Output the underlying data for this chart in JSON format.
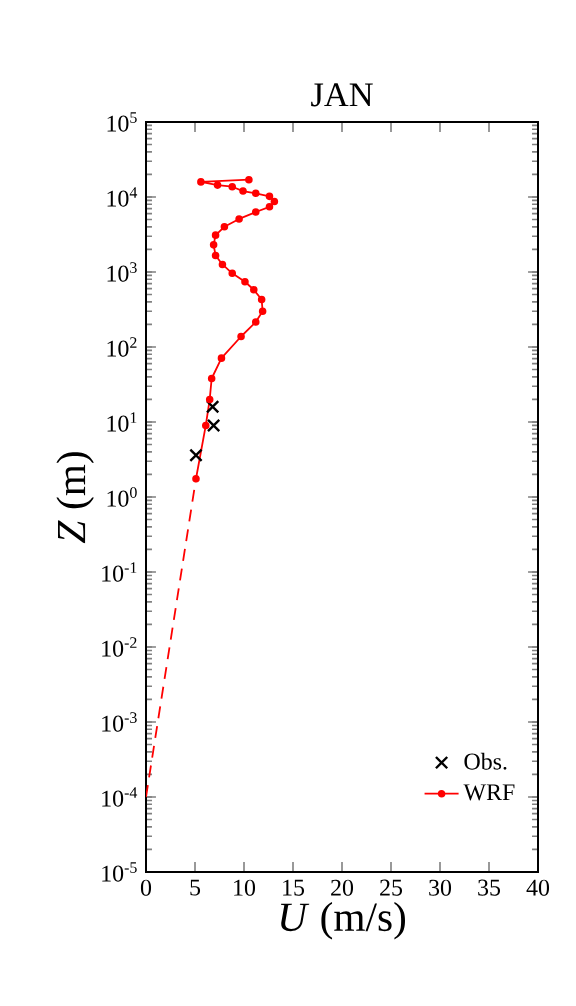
{
  "chart_data": {
    "type": "line",
    "title": "JAN",
    "xlabel": "*U* (m/s)",
    "ylabel": "*Z* (m)",
    "log": "y",
    "legend": "bottom right",
    "grid": false,
    "xlim": [
      0,
      40
    ],
    "xticks": [
      0,
      5,
      10,
      15,
      20,
      25,
      30,
      35,
      40
    ],
    "ylim": [
      1e-05,
      100000
    ],
    "yticks": [
      {
        "value": 1e-05,
        "label": "10$^{-5}$"
      },
      {
        "value": 0.0001,
        "label": "10$^{-4}$"
      },
      {
        "value": 0.001,
        "label": "10$^{-3}$"
      },
      {
        "value": 0.01,
        "label": "10$^{-2}$"
      },
      {
        "value": 0.1,
        "label": "10$^{-1}$"
      },
      {
        "value": 1,
        "label": "10$^{0}$"
      },
      {
        "value": 10,
        "label": "10$^{1}$"
      },
      {
        "value": 100,
        "label": "10$^{2}$"
      },
      {
        "value": 1000,
        "label": "10$^{3}$"
      },
      {
        "value": 10000,
        "label": "10$^{4}$"
      },
      {
        "value": 100000,
        "label": "10$^{5}$"
      }
    ],
    "series": [
      {
        "name": "Obs.",
        "type": "scatter",
        "color": "#000000",
        "marker": "cross",
        "x": [
          5.1,
          6.9,
          6.8
        ],
        "values": [
          3.6,
          9,
          16
        ]
      },
      {
        "name": "WRF",
        "color": "#ff0000",
        "marker": "circle",
        "line_style": "solid",
        "x": [
          5.1,
          6.1,
          6.5,
          6.7,
          7.7,
          9.7,
          11.2,
          11.9,
          11.8,
          11.0,
          10.1,
          8.8,
          7.8,
          7.1,
          6.9,
          7.1,
          8.0,
          9.5,
          11.2,
          12.6,
          13.1,
          12.6,
          11.2,
          9.9,
          8.8,
          7.3,
          5.6,
          10.5
        ],
        "values": [
          1.75,
          9,
          20,
          38,
          71,
          138,
          215,
          300,
          430,
          580,
          740,
          960,
          1260,
          1660,
          2300,
          3100,
          4000,
          5100,
          6300,
          7400,
          8700,
          10200,
          11200,
          12000,
          13700,
          14400,
          15900,
          17000
        ]
      },
      {
        "color": "#ff0000",
        "marker": "none",
        "line_style": "dashed",
        "x": [
          0,
          5.1
        ],
        "values": [
          0.0001,
          1.75
        ]
      }
    ]
  }
}
